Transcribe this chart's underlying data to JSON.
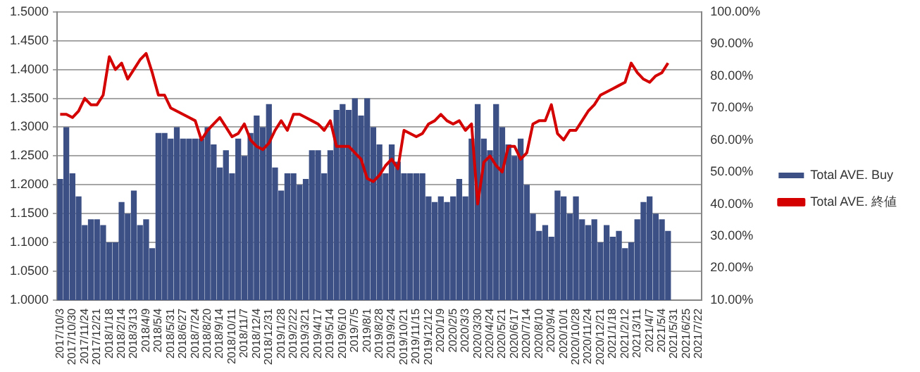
{
  "chart_data": {
    "type": "bar",
    "categories": [
      "2017/10/3",
      null,
      "2017/10/30",
      null,
      "2017/11/24",
      null,
      "2017/12/21",
      null,
      "2018/1/18",
      null,
      "2018/2/14",
      null,
      "2018/3/13",
      null,
      "2018/4/9",
      null,
      "2018/5/4",
      null,
      "2018/5/31",
      null,
      "2018/6/27",
      null,
      "2018/7/24",
      null,
      "2018/8/20",
      null,
      "2018/9/14",
      null,
      "2018/10/11",
      null,
      "2018/11/7",
      null,
      "2018/12/4",
      null,
      "2018/12/31",
      null,
      "2019/1/28",
      null,
      "2019/2/22",
      null,
      "2019/3/21",
      null,
      "2019/4/17",
      null,
      "2019/5/14",
      null,
      "2019/6/10",
      null,
      "2019/7/5",
      null,
      "2019/8/1",
      null,
      "2019/8/28",
      null,
      "2019/9/24",
      null,
      "2019/10/21",
      null,
      "2019/11/15",
      null,
      "2019/12/12",
      null,
      "2020/1/9",
      null,
      "2020/2/5",
      null,
      "2020/3/3",
      null,
      "2020/3/30",
      null,
      "2020/4/24",
      null,
      "2020/5/21",
      null,
      "2020/6/17",
      null,
      "2020/7/14",
      null,
      "2020/8/10",
      null,
      "2020/9/4",
      null,
      "2020/10/1",
      null,
      "2020/10/28",
      null,
      "2020/11/24",
      null,
      "2020/12/21",
      null,
      "2021/1/18",
      null,
      "2021/2/12",
      null,
      "2021/3/11",
      null,
      "2021/4/7",
      null,
      "2021/5/4",
      null,
      "2021/5/31",
      null,
      "2021/6/25",
      null,
      "2021/7/22"
    ],
    "series": [
      {
        "name": "Total AVE. Buy",
        "color": "#3c5086",
        "values": [
          1.21,
          1.3,
          1.22,
          1.18,
          1.13,
          1.14,
          1.14,
          1.13,
          1.1,
          1.1,
          1.17,
          1.15,
          1.19,
          1.13,
          1.14,
          1.09,
          1.29,
          1.29,
          1.28,
          1.3,
          1.28,
          1.28,
          1.28,
          1.28,
          1.3,
          1.27,
          1.23,
          1.26,
          1.22,
          1.28,
          1.25,
          1.29,
          1.32,
          1.3,
          1.34,
          1.23,
          1.19,
          1.22,
          1.22,
          1.2,
          1.21,
          1.26,
          1.26,
          1.22,
          1.26,
          1.33,
          1.34,
          1.33,
          1.35,
          1.32,
          1.35,
          1.3,
          1.27,
          1.22,
          1.27,
          1.24,
          1.22,
          1.22,
          1.22,
          1.22,
          1.18,
          1.17,
          1.18,
          1.17,
          1.18,
          1.21,
          1.18,
          1.28,
          1.34,
          1.28,
          1.26,
          1.34,
          1.3,
          1.27,
          1.25,
          1.28,
          1.2,
          1.15,
          1.12,
          1.13,
          1.11,
          1.19,
          1.18,
          1.15,
          1.18,
          1.14,
          1.13,
          1.14,
          1.1,
          1.13,
          1.11,
          1.12,
          1.09,
          1.1,
          1.14,
          1.17,
          1.18,
          1.15,
          1.14,
          1.12,
          null,
          null,
          null,
          null,
          null
        ]
      },
      {
        "name": "Total AVE. 終値",
        "type": "line",
        "axis": "y2",
        "color": "#d40000",
        "values": [
          68,
          68,
          67,
          69,
          73,
          71,
          71,
          74,
          86,
          82,
          84,
          79,
          82,
          85,
          87,
          81,
          74,
          74,
          70,
          69,
          68,
          67,
          66,
          60,
          63,
          65,
          67,
          64,
          61,
          62,
          65,
          60,
          58,
          57,
          59,
          63,
          66,
          63,
          68,
          68,
          67,
          66,
          65,
          63,
          66,
          58,
          58,
          58,
          56,
          54,
          48,
          47,
          49,
          52,
          54,
          51,
          63,
          62,
          61,
          62,
          65,
          66,
          68,
          66,
          65,
          66,
          63,
          65,
          40,
          53,
          55,
          52,
          50,
          58,
          58,
          54,
          56,
          65,
          66,
          66,
          71,
          62,
          60,
          63,
          63,
          66,
          69,
          71,
          74,
          75,
          76,
          77,
          78,
          84,
          81,
          79,
          78,
          80,
          81,
          84,
          null,
          null,
          null,
          null,
          null
        ]
      }
    ],
    "ylim": [
      1,
      1.5
    ],
    "yticks": [
      {
        "value": 1,
        "label": "1.0000"
      },
      {
        "value": 1.05,
        "label": "1.0500"
      },
      {
        "value": 1.1,
        "label": "1.1000"
      },
      {
        "value": 1.15,
        "label": "1.1500"
      },
      {
        "value": 1.2,
        "label": "1.2000"
      },
      {
        "value": 1.25,
        "label": "1.2500"
      },
      {
        "value": 1.3,
        "label": "1.3000"
      },
      {
        "value": 1.35,
        "label": "1.3500"
      },
      {
        "value": 1.4,
        "label": "1.4000"
      },
      {
        "value": 1.45,
        "label": "1.4500"
      },
      {
        "value": 1.5,
        "label": "1.5000"
      }
    ],
    "y2lim": [
      10,
      100
    ],
    "y2ticks": [
      {
        "value": 10,
        "label": "10.00%"
      },
      {
        "value": 20,
        "label": "20.00%"
      },
      {
        "value": 30,
        "label": "30.00%"
      },
      {
        "value": 40,
        "label": "40.00%"
      },
      {
        "value": 50,
        "label": "50.00%"
      },
      {
        "value": 60,
        "label": "60.00%"
      },
      {
        "value": 70,
        "label": "70.00%"
      },
      {
        "value": 80,
        "label": "80.00%"
      },
      {
        "value": 90,
        "label": "90.00%"
      },
      {
        "value": 100,
        "label": "100.00%"
      }
    ],
    "grid": "y",
    "legend": "right"
  }
}
